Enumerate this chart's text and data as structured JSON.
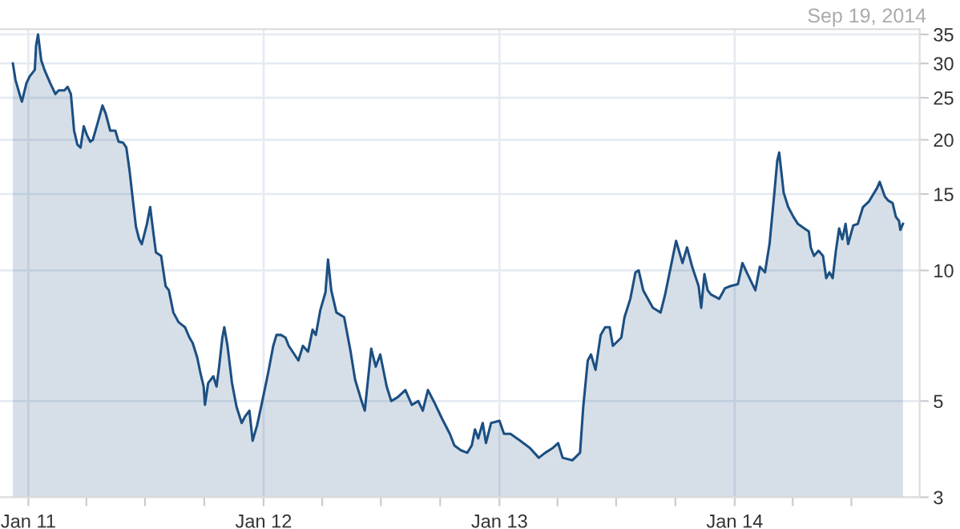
{
  "chart_data": {
    "type": "area",
    "annotations": [
      "Sep 19, 2014"
    ],
    "x": [
      "2010-12-08",
      "2010-12-12",
      "2010-12-20",
      "2010-12-22",
      "2010-12-29",
      "2011-01-03",
      "2011-01-11",
      "2011-01-13",
      "2011-01-16",
      "2011-01-21",
      "2011-01-26",
      "2011-02-04",
      "2011-02-12",
      "2011-02-17",
      "2011-02-26",
      "2011-03-03",
      "2011-03-08",
      "2011-03-13",
      "2011-03-18",
      "2011-03-23",
      "2011-03-28",
      "2011-04-02",
      "2011-04-07",
      "2011-04-11",
      "2011-04-19",
      "2011-04-26",
      "2011-05-01",
      "2011-05-08",
      "2011-05-16",
      "2011-05-21",
      "2011-05-28",
      "2011-06-02",
      "2011-06-07",
      "2011-06-12",
      "2011-06-17",
      "2011-06-22",
      "2011-06-26",
      "2011-07-04",
      "2011-07-09",
      "2011-07-14",
      "2011-07-18",
      "2011-07-26",
      "2011-08-02",
      "2011-08-07",
      "2011-08-14",
      "2011-08-22",
      "2011-09-01",
      "2011-09-08",
      "2011-09-13",
      "2011-09-20",
      "2011-09-25",
      "2011-09-30",
      "2011-10-02",
      "2011-10-07",
      "2011-10-15",
      "2011-10-20",
      "2011-10-24",
      "2011-10-29",
      "2011-11-01",
      "2011-11-06",
      "2011-11-13",
      "2011-11-20",
      "2011-11-28",
      "2011-12-03",
      "2011-12-10",
      "2011-12-15",
      "2011-12-22",
      "2011-12-30",
      "2012-01-08",
      "2012-01-16",
      "2012-01-21",
      "2012-01-28",
      "2012-02-04",
      "2012-02-09",
      "2012-02-24",
      "2012-03-02",
      "2012-03-10",
      "2012-03-17",
      "2012-03-22",
      "2012-03-29",
      "2012-04-06",
      "2012-04-10",
      "2012-04-15",
      "2012-04-23",
      "2012-05-05",
      "2012-05-15",
      "2012-05-22",
      "2012-06-01",
      "2012-06-06",
      "2012-06-11",
      "2012-06-16",
      "2012-06-23",
      "2012-06-30",
      "2012-07-10",
      "2012-07-17",
      "2012-07-27",
      "2012-08-08",
      "2012-08-18",
      "2012-08-28",
      "2012-09-04",
      "2012-09-12",
      "2012-09-22",
      "2012-10-04",
      "2012-10-16",
      "2012-10-23",
      "2012-11-02",
      "2012-11-12",
      "2012-11-19",
      "2012-11-24",
      "2012-11-29",
      "2012-12-06",
      "2012-12-11",
      "2012-12-19",
      "2013-01-01",
      "2013-01-08",
      "2013-01-18",
      "2013-02-02",
      "2013-02-17",
      "2013-03-03",
      "2013-03-13",
      "2013-03-25",
      "2013-04-02",
      "2013-04-09",
      "2013-04-24",
      "2013-05-06",
      "2013-05-11",
      "2013-05-18",
      "2013-05-23",
      "2013-05-30",
      "2013-06-07",
      "2013-06-14",
      "2013-06-21",
      "2013-06-26",
      "2013-07-09",
      "2013-07-14",
      "2013-07-23",
      "2013-07-31",
      "2013-08-05",
      "2013-08-12",
      "2013-08-27",
      "2013-09-08",
      "2013-09-15",
      "2013-09-25",
      "2013-10-02",
      "2013-10-12",
      "2013-10-19",
      "2013-10-27",
      "2013-11-06",
      "2013-11-10",
      "2013-11-15",
      "2013-11-20",
      "2013-11-25",
      "2013-12-08",
      "2013-12-17",
      "2013-12-25",
      "2014-01-06",
      "2014-01-13",
      "2014-01-21",
      "2014-02-02",
      "2014-02-09",
      "2014-02-17",
      "2014-02-24",
      "2014-03-03",
      "2014-03-08",
      "2014-03-11",
      "2014-03-18",
      "2014-03-25",
      "2014-04-02",
      "2014-04-09",
      "2014-04-19",
      "2014-04-26",
      "2014-04-29",
      "2014-05-04",
      "2014-05-11",
      "2014-05-18",
      "2014-05-23",
      "2014-05-28",
      "2014-06-02",
      "2014-06-07",
      "2014-06-12",
      "2014-06-17",
      "2014-06-22",
      "2014-06-26",
      "2014-07-04",
      "2014-07-11",
      "2014-07-19",
      "2014-07-28",
      "2014-08-10",
      "2014-08-14",
      "2014-08-22",
      "2014-08-27",
      "2014-09-03",
      "2014-09-08",
      "2014-09-13",
      "2014-09-15",
      "2014-09-19"
    ],
    "series": [
      {
        "color": "#1c4f82",
        "values": [
          30,
          27.5,
          25,
          24.5,
          27,
          28,
          29,
          33,
          35,
          30.5,
          29,
          27,
          25.5,
          26,
          26,
          26.5,
          25.5,
          21,
          19.5,
          19.2,
          21.5,
          20.5,
          19.8,
          20,
          22,
          24,
          23,
          21,
          21,
          19.8,
          19.7,
          19.2,
          17,
          14.6,
          12.6,
          11.8,
          11.5,
          12.8,
          14,
          12.2,
          11,
          10.8,
          9.2,
          9.0,
          8.0,
          7.6,
          7.4,
          7.0,
          6.8,
          6.3,
          5.8,
          5.4,
          4.9,
          5.5,
          5.7,
          5.4,
          6.0,
          7.0,
          7.4,
          6.7,
          5.5,
          4.85,
          4.45,
          4.6,
          4.75,
          4.05,
          4.4,
          5.0,
          5.8,
          6.7,
          7.1,
          7.1,
          7.0,
          6.7,
          6.2,
          6.7,
          6.5,
          7.3,
          7.1,
          8.1,
          8.9,
          10.6,
          9.0,
          8.0,
          7.8,
          6.5,
          5.6,
          5.0,
          4.75,
          5.6,
          6.6,
          6.0,
          6.4,
          5.4,
          5.0,
          5.1,
          5.3,
          4.9,
          5.0,
          4.75,
          5.3,
          4.96,
          4.55,
          4.2,
          3.95,
          3.85,
          3.8,
          3.95,
          4.3,
          4.1,
          4.45,
          4.0,
          4.45,
          4.5,
          4.2,
          4.2,
          4.05,
          3.9,
          3.7,
          3.8,
          3.9,
          4.0,
          3.7,
          3.65,
          3.8,
          4.85,
          6.2,
          6.4,
          5.9,
          7.1,
          7.4,
          7.4,
          6.7,
          7.0,
          7.8,
          8.6,
          9.9,
          10,
          9.0,
          8.2,
          8.0,
          8.8,
          10.4,
          11.7,
          10.4,
          11.3,
          10.2,
          9.2,
          8.2,
          9.8,
          9.0,
          8.8,
          8.6,
          9.1,
          9.2,
          9.3,
          10.4,
          9.8,
          9.0,
          10.2,
          9.9,
          11.5,
          14.8,
          17.9,
          18.7,
          15.1,
          14.0,
          13.3,
          12.8,
          12.5,
          12.3,
          11.3,
          10.8,
          11.1,
          10.8,
          9.6,
          9.9,
          9.6,
          11.1,
          12.5,
          11.8,
          12.8,
          11.5,
          12.7,
          12.8,
          14.0,
          14.4,
          15.5,
          16.0,
          14.8,
          14.5,
          14.3,
          13.3,
          13.0,
          12.4,
          12.8
        ]
      }
    ],
    "xlim": [
      "2010-11-18",
      "2014-10-15"
    ],
    "xticks": [
      {
        "value": "2011-01-01",
        "label": "Jan 11"
      },
      {
        "value": "2011-04-01",
        "label": null
      },
      {
        "value": "2011-07-01",
        "label": null
      },
      {
        "value": "2011-10-01",
        "label": null
      },
      {
        "value": "2012-01-01",
        "label": "Jan 12"
      },
      {
        "value": "2012-04-01",
        "label": null
      },
      {
        "value": "2012-07-01",
        "label": null
      },
      {
        "value": "2012-10-01",
        "label": null
      },
      {
        "value": "2013-01-01",
        "label": "Jan 13"
      },
      {
        "value": "2013-04-01",
        "label": null
      },
      {
        "value": "2013-07-01",
        "label": null
      },
      {
        "value": "2013-10-01",
        "label": null
      },
      {
        "value": "2014-01-01",
        "label": "Jan 14"
      },
      {
        "value": "2014-04-01",
        "label": null
      },
      {
        "value": "2014-07-01",
        "label": null
      }
    ],
    "ylim": [
      3,
      36
    ],
    "yticks": [
      3,
      5,
      10,
      15,
      20,
      25,
      30,
      35
    ],
    "log": true,
    "grid": true
  }
}
